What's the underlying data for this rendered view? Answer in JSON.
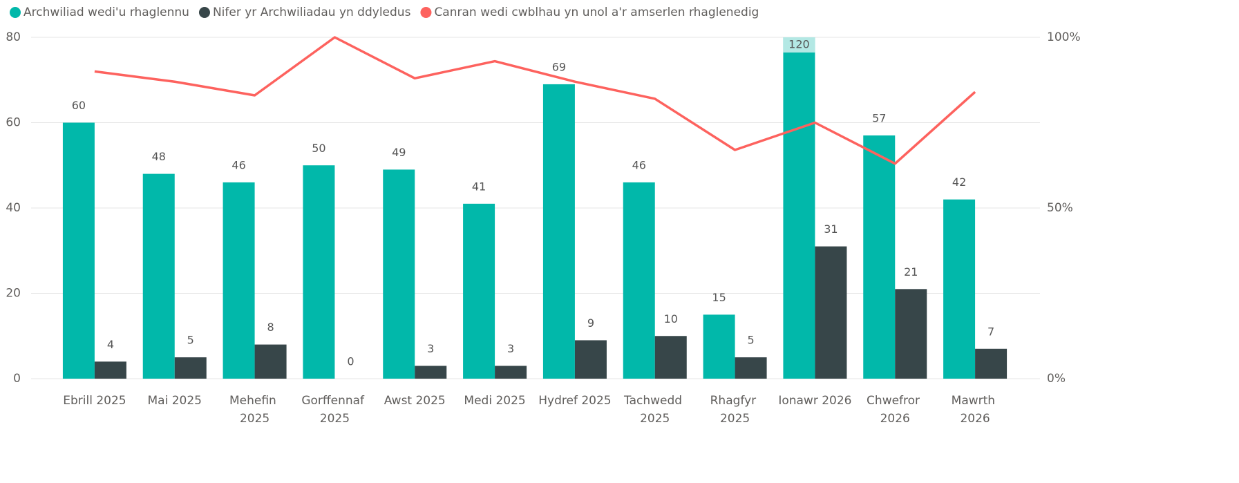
{
  "chart_data": {
    "type": "bar-line",
    "categories": [
      "Ebrill 2025",
      "Mai 2025",
      "Mehefin 2025",
      "Gorffennaf 2025",
      "Awst 2025",
      "Medi 2025",
      "Hydref 2025",
      "Tachwedd 2025",
      "Rhagfyr 2025",
      "Ionawr 2026",
      "Chwefror 2026",
      "Mawrth 2026"
    ],
    "series": [
      {
        "name": "Archwiliad wedi'u rhaglennu",
        "type": "bar",
        "color": "#01b8aa",
        "values": [
          60,
          48,
          46,
          50,
          49,
          41,
          69,
          46,
          15,
          120,
          57,
          42
        ]
      },
      {
        "name": "Nifer yr Archwiliadau yn ddyledus",
        "type": "bar",
        "color": "#374649",
        "values": [
          4,
          5,
          8,
          0,
          3,
          3,
          9,
          10,
          5,
          31,
          21,
          7
        ]
      },
      {
        "name": "Canran wedi cwblhau yn unol a'r amserlen rhaglenedig",
        "type": "line",
        "axis": "y2",
        "color": "#fd625e",
        "values": [
          90,
          87,
          83,
          100,
          88,
          93,
          87,
          82,
          67,
          75,
          63,
          84
        ]
      }
    ],
    "ylim": [
      0,
      80
    ],
    "yticks": [
      0,
      20,
      40,
      60,
      80
    ],
    "y2lim": [
      0,
      100
    ],
    "y2ticks": [
      {
        "value": 0,
        "label": "0%"
      },
      {
        "value": 50,
        "label": "50%"
      },
      {
        "value": 100,
        "label": "100%"
      }
    ],
    "grid": true,
    "legend": "top-left"
  }
}
